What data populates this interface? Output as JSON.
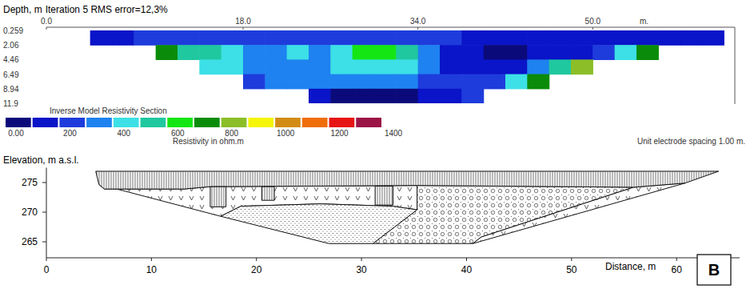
{
  "chart_data": [
    {
      "type": "heatmap",
      "title": "Iteration 5 RMS error=12,3%",
      "y_label": "Depth, m",
      "x_label": "m.",
      "xlim": [
        0,
        63
      ],
      "xticks": [
        {
          "value": 0,
          "label": "0.0"
        },
        {
          "value": 18,
          "label": "18.0"
        },
        {
          "value": 34,
          "label": "34.0"
        },
        {
          "value": 50,
          "label": "50.0"
        }
      ],
      "ylim": [
        0.259,
        11.9
      ],
      "yticks": [
        0.259,
        2.06,
        4.46,
        6.49,
        8.94,
        11.9
      ],
      "x_edges": [
        4,
        6,
        8,
        10,
        12,
        14,
        16,
        18,
        20,
        22,
        24,
        26,
        28,
        30,
        32,
        34,
        36,
        38,
        40,
        42,
        44,
        46,
        48,
        50,
        52,
        54,
        56,
        58,
        60,
        62
      ],
      "y_edges": [
        0.259,
        2.06,
        4.46,
        6.49,
        8.94,
        11.9
      ],
      "cells": [
        [
          150,
          180,
          200,
          220,
          250,
          250,
          220,
          200,
          220,
          250,
          220,
          200,
          220,
          250,
          250,
          220,
          200,
          150,
          120,
          100,
          100,
          100,
          120,
          120,
          150,
          150,
          150,
          150,
          120
        ],
        [
          null,
          null,
          null,
          750,
          500,
          550,
          450,
          350,
          380,
          450,
          380,
          450,
          620,
          650,
          550,
          350,
          150,
          100,
          80,
          80,
          100,
          150,
          150,
          250,
          400,
          700,
          null,
          null,
          null
        ],
        [
          null,
          null,
          null,
          null,
          null,
          450,
          400,
          350,
          350,
          300,
          350,
          400,
          450,
          450,
          400,
          300,
          150,
          100,
          100,
          150,
          300,
          550,
          800,
          null,
          null,
          null,
          null,
          null,
          null
        ],
        [
          null,
          null,
          null,
          null,
          null,
          null,
          null,
          250,
          300,
          350,
          350,
          350,
          350,
          300,
          300,
          250,
          200,
          200,
          250,
          400,
          700,
          null,
          null,
          null,
          null,
          null,
          null,
          null,
          null
        ],
        [
          null,
          null,
          null,
          null,
          null,
          null,
          null,
          null,
          null,
          null,
          100,
          80,
          80,
          80,
          80,
          100,
          150,
          250,
          null,
          null,
          null,
          null,
          null,
          null,
          null,
          null,
          null,
          null,
          null
        ]
      ],
      "colorbar": {
        "label": "Resistivity in ohm.m",
        "range": [
          0,
          1400
        ],
        "ticks": [
          {
            "value": 0,
            "label": "0.00"
          },
          200,
          400,
          600,
          800,
          1000,
          1200,
          1400
        ],
        "colors": [
          "#0a0a7a",
          "#0a14c8",
          "#1e3cdc",
          "#1e82f0",
          "#3ce0e6",
          "#20c8a0",
          "#14e614",
          "#0a8c0a",
          "#8cbe28",
          "#f5f50a",
          "#d28c14",
          "#f06e0a",
          "#e61414",
          "#9b1446"
        ]
      },
      "annotations": [
        "Inverse Model Resistivity Section",
        "Unit electrode spacing 1.00 m."
      ]
    },
    {
      "type": "section",
      "x_label": "Distance, m",
      "y_label": "Elevation, m a.s.l.",
      "xlim": [
        0,
        66
      ],
      "xticks": [
        0,
        10,
        20,
        30,
        40,
        50,
        60
      ],
      "ylim": [
        262.3,
        277.5
      ],
      "yticks": [
        265,
        270,
        275
      ],
      "series": [
        {
          "marker": "v",
          "x": [
            5.0,
            5.5,
            13.1,
            15.6,
            35.3,
            35.3,
            33.0,
            26.1,
            18.5,
            16.6
          ],
          "values": [
            274.7,
            273.9,
            273.9,
            274.3,
            274.5,
            270.4,
            271.0,
            271.4,
            271.0,
            269.3
          ]
        },
        {
          "marker": "dots",
          "x": [
            16.6,
            18.5,
            26.1,
            33.0,
            35.3,
            31.1,
            26.9
          ],
          "values": [
            269.3,
            271.0,
            271.4,
            271.0,
            270.4,
            264.7,
            264.7
          ]
        },
        {
          "marker": "circles",
          "x": [
            35.3,
            55.9,
            41.4,
            40.6,
            31.1,
            35.3
          ],
          "values": [
            274.5,
            274.2,
            265.8,
            264.7,
            264.7,
            270.4
          ]
        },
        {
          "marker": "v",
          "x": [
            55.9,
            60.8,
            40.6,
            41.4
          ],
          "values": [
            274.2,
            274.9,
            264.7,
            265.8
          ]
        },
        {
          "marker": "vertical_hatch",
          "x": [
            4.7,
            64.0,
            60.8,
            55.9,
            35.3,
            15.6,
            13.1,
            5.5,
            5.0
          ],
          "values": [
            276.9,
            276.9,
            274.9,
            274.2,
            274.5,
            274.3,
            273.9,
            273.9,
            274.7
          ]
        },
        {
          "marker": "vertical_hatch",
          "x": [
            15.6,
            17.1,
            17.1,
            15.6
          ],
          "values": [
            274.3,
            274.3,
            270.9,
            270.9
          ]
        },
        {
          "marker": "vertical_hatch",
          "x": [
            20.5,
            21.7,
            21.7,
            20.5
          ],
          "values": [
            274.3,
            274.3,
            272.0,
            272.0
          ]
        },
        {
          "marker": "vertical_hatch",
          "x": [
            31.3,
            33.0,
            33.0,
            31.3
          ],
          "values": [
            274.4,
            274.4,
            271.2,
            271.2
          ]
        }
      ],
      "annotations": [
        "B"
      ]
    }
  ]
}
